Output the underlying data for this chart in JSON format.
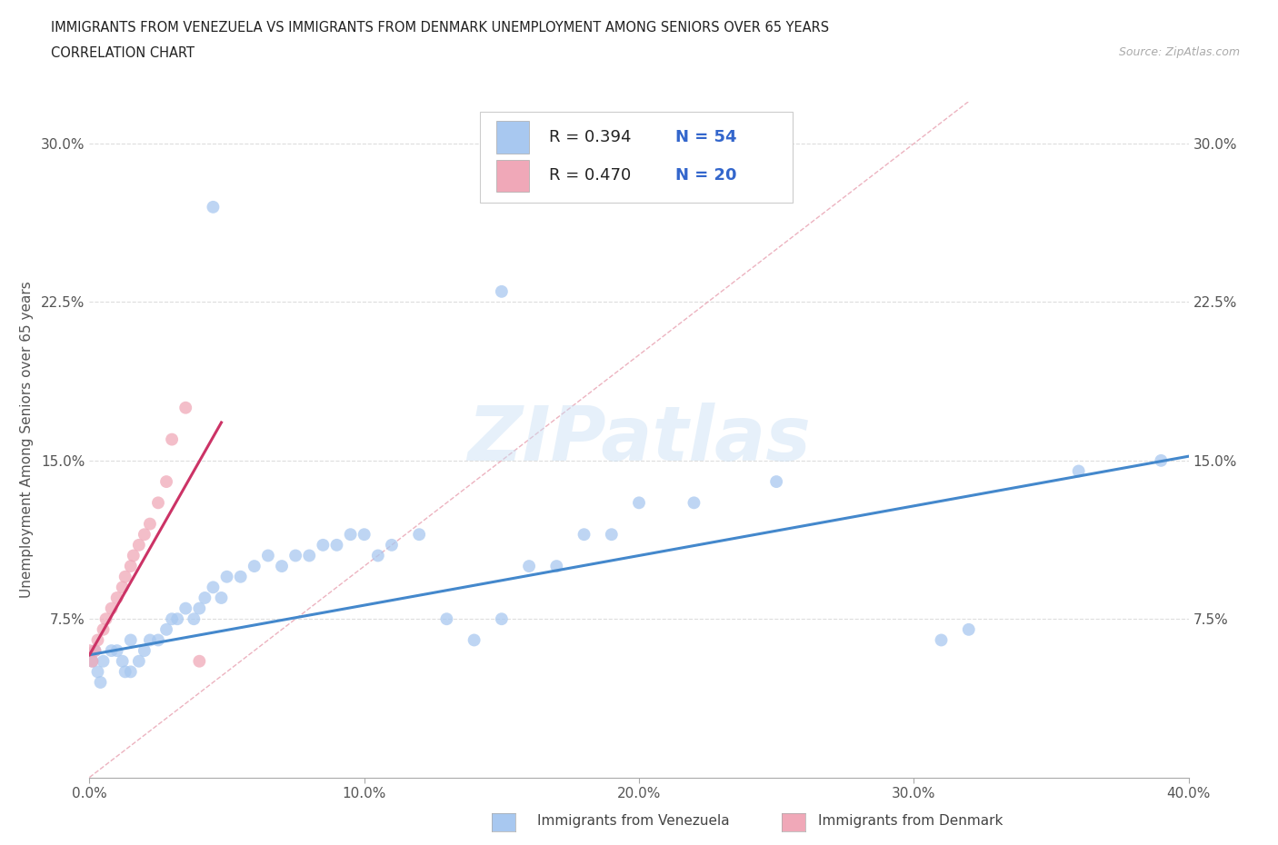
{
  "title_line1": "IMMIGRANTS FROM VENEZUELA VS IMMIGRANTS FROM DENMARK UNEMPLOYMENT AMONG SENIORS OVER 65 YEARS",
  "title_line2": "CORRELATION CHART",
  "source_text": "Source: ZipAtlas.com",
  "ylabel": "Unemployment Among Seniors over 65 years",
  "xlim": [
    0.0,
    0.4
  ],
  "ylim": [
    0.0,
    0.32
  ],
  "xtick_labels": [
    "0.0%",
    "10.0%",
    "20.0%",
    "30.0%",
    "40.0%"
  ],
  "xtick_values": [
    0.0,
    0.1,
    0.2,
    0.3,
    0.4
  ],
  "ytick_labels": [
    "7.5%",
    "15.0%",
    "22.5%",
    "30.0%"
  ],
  "ytick_values": [
    0.075,
    0.15,
    0.225,
    0.3
  ],
  "watermark": "ZIPatlas",
  "color_venezuela": "#a8c8f0",
  "color_denmark": "#f0a8b8",
  "color_line_venezuela": "#4488cc",
  "color_line_denmark": "#cc3366",
  "color_diag": "#e8a0b0",
  "venezuela_x": [
    0.001,
    0.002,
    0.003,
    0.004,
    0.005,
    0.008,
    0.01,
    0.012,
    0.013,
    0.015,
    0.015,
    0.018,
    0.02,
    0.022,
    0.025,
    0.028,
    0.03,
    0.032,
    0.035,
    0.038,
    0.04,
    0.042,
    0.045,
    0.048,
    0.05,
    0.055,
    0.06,
    0.065,
    0.07,
    0.075,
    0.08,
    0.085,
    0.09,
    0.095,
    0.1,
    0.105,
    0.11,
    0.12,
    0.13,
    0.14,
    0.15,
    0.16,
    0.17,
    0.18,
    0.19,
    0.2,
    0.22,
    0.25,
    0.31,
    0.32,
    0.36,
    0.39,
    0.15,
    0.045
  ],
  "venezuela_y": [
    0.055,
    0.06,
    0.05,
    0.045,
    0.055,
    0.06,
    0.06,
    0.055,
    0.05,
    0.05,
    0.065,
    0.055,
    0.06,
    0.065,
    0.065,
    0.07,
    0.075,
    0.075,
    0.08,
    0.075,
    0.08,
    0.085,
    0.09,
    0.085,
    0.095,
    0.095,
    0.1,
    0.105,
    0.1,
    0.105,
    0.105,
    0.11,
    0.11,
    0.115,
    0.115,
    0.105,
    0.11,
    0.115,
    0.075,
    0.065,
    0.075,
    0.1,
    0.1,
    0.115,
    0.115,
    0.13,
    0.13,
    0.14,
    0.065,
    0.07,
    0.145,
    0.15,
    0.23,
    0.27
  ],
  "denmark_x": [
    0.0,
    0.001,
    0.002,
    0.003,
    0.005,
    0.006,
    0.008,
    0.01,
    0.012,
    0.013,
    0.015,
    0.016,
    0.018,
    0.02,
    0.022,
    0.025,
    0.028,
    0.03,
    0.035,
    0.04
  ],
  "denmark_y": [
    0.06,
    0.055,
    0.06,
    0.065,
    0.07,
    0.075,
    0.08,
    0.085,
    0.09,
    0.095,
    0.1,
    0.105,
    0.11,
    0.115,
    0.12,
    0.13,
    0.14,
    0.16,
    0.175,
    0.055
  ],
  "reg_line_venezuela": {
    "x0": 0.0,
    "x1": 0.4,
    "y0": 0.058,
    "y1": 0.152
  },
  "reg_line_denmark": {
    "x0": 0.0,
    "x1": 0.048,
    "y0": 0.058,
    "y1": 0.168
  },
  "diag_line": {
    "x0": 0.0,
    "x1": 0.32,
    "y0": 0.0,
    "y1": 0.32
  }
}
